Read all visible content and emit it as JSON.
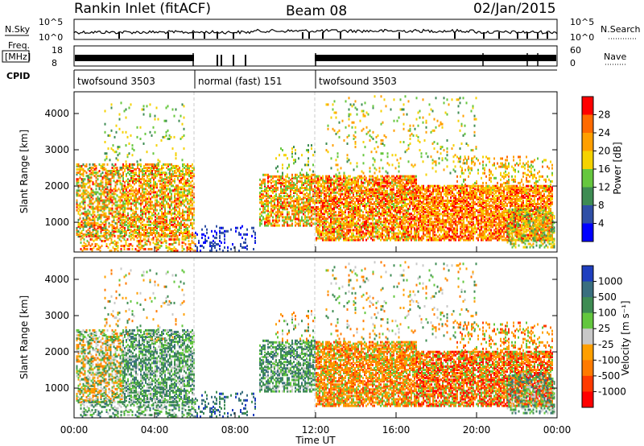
{
  "header": {
    "site": "Rankin Inlet (fitACF)",
    "beam": "Beam 08",
    "date": "02/Jan/2015"
  },
  "strips": {
    "nsky_label": "N.Sky",
    "nsearch_label": "N.Search",
    "noise_ticks_left": [
      "10^5",
      "10^0"
    ],
    "noise_ticks_right": [
      "10^5",
      "10^0"
    ],
    "freq_label_1": "Freq.",
    "freq_label_2": "[MHz]",
    "freq_ticks": [
      "18",
      "8"
    ],
    "nave_label": "Nave",
    "nave_ticks": [
      "60",
      "0"
    ],
    "cpid_label": "CPID",
    "cpid_segments": [
      {
        "label": "twofsound 3503",
        "start": 0,
        "end": 6
      },
      {
        "label": "normal (fast) 151",
        "start": 6,
        "end": 12
      },
      {
        "label": "twofsound 3503",
        "start": 12,
        "end": 24
      }
    ]
  },
  "chart_data": [
    {
      "type": "heatmap",
      "title": "",
      "ylabel": "Slant Range [km]",
      "xlabel": "",
      "x_range_hours": [
        0,
        24
      ],
      "ylim": [
        180,
        4600
      ],
      "yticks": [
        "1000",
        "2000",
        "3000",
        "4000"
      ],
      "colorbar": {
        "label": "Power [dB]",
        "ticks": [
          "28",
          "24",
          "20",
          "16",
          "12",
          "8",
          "4"
        ],
        "colors": [
          "#ff0000",
          "#ff6a00",
          "#ff9f00",
          "#f5d200",
          "#66c73e",
          "#3e8c53",
          "#2f4fa6",
          "#0000ff"
        ],
        "range": [
          0,
          32
        ]
      }
    },
    {
      "type": "heatmap",
      "title": "",
      "ylabel": "Slant Range [km]",
      "xlabel": "Time UT",
      "x_range_hours": [
        0,
        24
      ],
      "xticks": [
        "00:00",
        "04:00",
        "08:00",
        "12:00",
        "16:00",
        "20:00",
        "00:00"
      ],
      "ylim": [
        180,
        4600
      ],
      "yticks": [
        "1000",
        "2000",
        "3000",
        "4000"
      ],
      "colorbar": {
        "label": "Velocity [m s⁻¹]",
        "ticks": [
          "1000",
          "500",
          "100",
          "25",
          "-25",
          "-100",
          "-500",
          "-1000"
        ],
        "colors": [
          "#1f3fbf",
          "#3a6f7f",
          "#3e8c53",
          "#63c73e",
          "#c8c8c8",
          "#ff9f00",
          "#ff7a00",
          "#ff3a00",
          "#ff0000"
        ]
      }
    }
  ]
}
